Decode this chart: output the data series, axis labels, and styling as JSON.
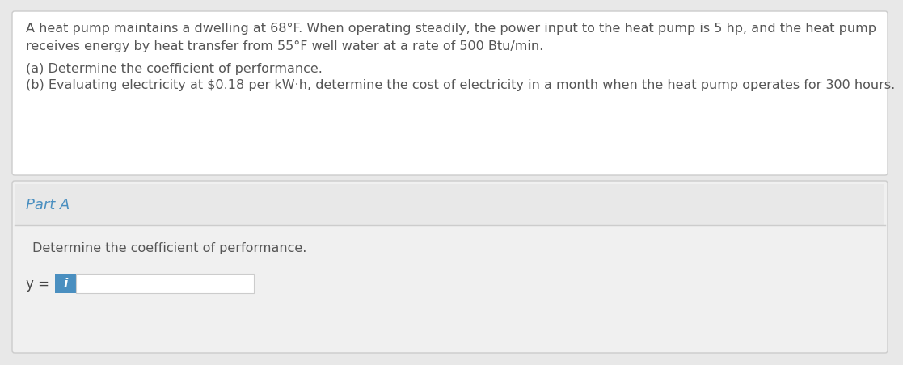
{
  "bg_color": "#e8e8e8",
  "white_bg": "#ffffff",
  "card_bg": "#f0f0f0",
  "header_bg": "#e8e8e8",
  "top_box_text_line1": "A heat pump maintains a dwelling at 68°F. When operating steadily, the power input to the heat pump is 5 hp, and the heat pump",
  "top_box_text_line2": "receives energy by heat transfer from 55°F well water at a rate of 500 Btu/min.",
  "top_box_text_line3": "(a) Determine the coefficient of performance.",
  "top_box_text_line4": "(b) Evaluating electricity at $0.18 per kW·h, determine the cost of electricity in a month when the heat pump operates for 300 hours.",
  "part_a_label": "Part A",
  "part_a_color": "#4a8fc0",
  "sub_label": "Determine the coefficient of performance.",
  "y_label": "y =",
  "info_icon_bg": "#4a8fc0",
  "info_icon_text": "i",
  "text_color_main": "#555555",
  "text_color_dark": "#444444",
  "font_size_main": 11.5,
  "font_size_part": 13,
  "font_size_sub": 11.5,
  "border_color": "#cccccc",
  "separator_color": "#cccccc"
}
